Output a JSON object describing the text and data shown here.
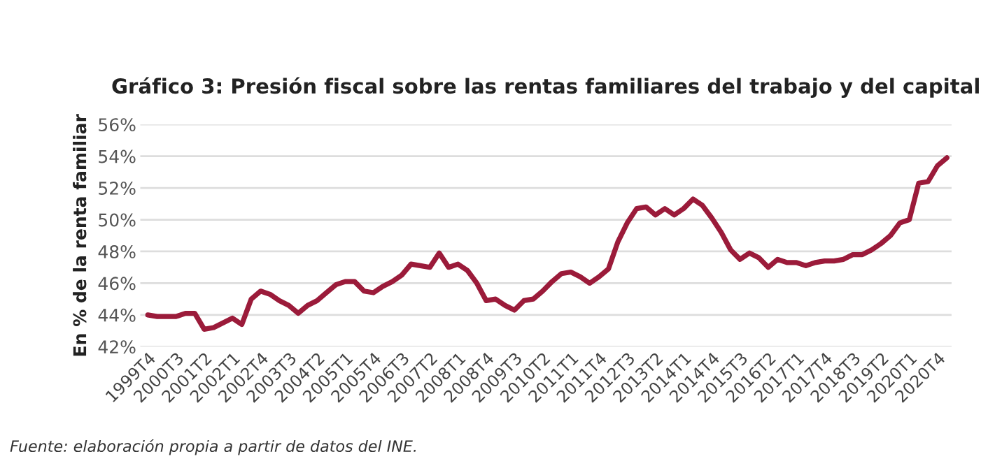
{
  "chart_data": {
    "type": "line",
    "title": "Gráfico 3: Presión fiscal sobre las rentas familiares del trabajo y del capital",
    "ylabel": "En % de la renta familiar",
    "categories": [
      "1999T4",
      null,
      null,
      "2000T3",
      null,
      null,
      "2001T2",
      null,
      null,
      "2002T1",
      null,
      null,
      "2002T4",
      null,
      null,
      "2003T3",
      null,
      null,
      "2004T2",
      null,
      null,
      "2005T1",
      null,
      null,
      "2005T4",
      null,
      null,
      "2006T3",
      null,
      null,
      "2007T2",
      null,
      null,
      "2008T1",
      null,
      null,
      "2008T4",
      null,
      null,
      "2009T3",
      null,
      null,
      "2010T2",
      null,
      null,
      "2011T1",
      null,
      null,
      "2011T4",
      null,
      null,
      "2012T3",
      null,
      null,
      "2013T2",
      null,
      null,
      "2014T1",
      null,
      null,
      "2014T4",
      null,
      null,
      "2015T3",
      null,
      null,
      "2016T2",
      null,
      null,
      "2017T1",
      null,
      null,
      "2017T4",
      null,
      null,
      "2018T3",
      null,
      null,
      "2019T2",
      null,
      null,
      "2020T1",
      null,
      null,
      "2020T4",
      null
    ],
    "series": [
      {
        "color": "#9b1b3a",
        "values": [
          44.0,
          43.9,
          43.9,
          43.9,
          44.1,
          44.1,
          43.1,
          43.2,
          43.5,
          43.8,
          43.4,
          45.0,
          45.5,
          45.3,
          44.9,
          44.6,
          44.1,
          44.6,
          44.9,
          45.4,
          45.9,
          46.1,
          46.1,
          45.5,
          45.4,
          45.8,
          46.1,
          46.5,
          47.2,
          47.1,
          47.0,
          47.9,
          47.0,
          47.2,
          46.8,
          46.0,
          44.9,
          45.0,
          44.6,
          44.3,
          44.9,
          45.0,
          45.5,
          46.1,
          46.6,
          46.7,
          46.4,
          46.0,
          46.4,
          46.9,
          48.6,
          49.8,
          50.7,
          50.8,
          50.3,
          50.7,
          50.3,
          50.7,
          51.3,
          50.9,
          50.1,
          49.2,
          48.1,
          47.5,
          47.9,
          47.6,
          47.0,
          47.5,
          47.3,
          47.3,
          47.1,
          47.3,
          47.4,
          47.4,
          47.5,
          47.8,
          47.8,
          48.1,
          48.5,
          49.0,
          49.8,
          50.0,
          52.3,
          52.4,
          53.4,
          53.9
        ]
      }
    ],
    "ylim": [
      42,
      56
    ],
    "yticks": [
      {
        "value": 42,
        "label": "42%"
      },
      {
        "value": 44,
        "label": "44%"
      },
      {
        "value": 46,
        "label": "46%"
      },
      {
        "value": 48,
        "label": "48%"
      },
      {
        "value": 50,
        "label": "50%"
      },
      {
        "value": 52,
        "label": "52%"
      },
      {
        "value": 54,
        "label": "54%"
      },
      {
        "value": 56,
        "label": "56%"
      }
    ],
    "grid": "y",
    "marker": "none",
    "line_style": "solid",
    "annotations": [
      "Fuente: elaboración propia a partir de datos del INE."
    ]
  }
}
